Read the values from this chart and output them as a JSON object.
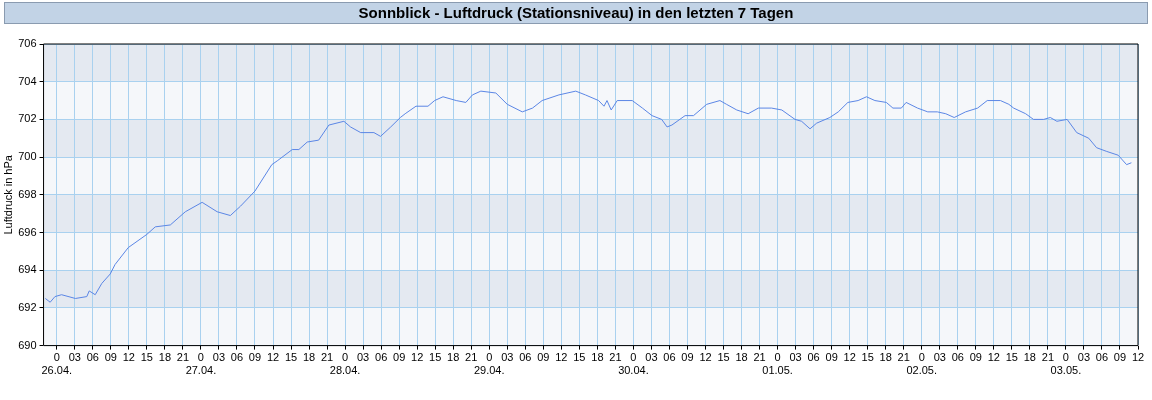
{
  "chart_data": {
    "type": "line",
    "title": "Sonnblick - Luftdruck (Stationsniveau) in den letzten 7 Tagen",
    "ylabel": "Luftdruck in hPa",
    "xlim": [
      "--04-25T21:48",
      "--05-03T12:00"
    ],
    "ylim": [
      690,
      706
    ],
    "yticks": [
      690,
      692,
      694,
      696,
      698,
      700,
      702,
      704,
      706
    ],
    "xticks": [
      {
        "value": "--04-26T00:00",
        "label": "0\n26.04."
      },
      {
        "value": "--04-26T03:00",
        "label": "03"
      },
      {
        "value": "--04-26T06:00",
        "label": "06"
      },
      {
        "value": "--04-26T09:00",
        "label": "09"
      },
      {
        "value": "--04-26T12:00",
        "label": "12"
      },
      {
        "value": "--04-26T15:00",
        "label": "15"
      },
      {
        "value": "--04-26T18:00",
        "label": "18"
      },
      {
        "value": "--04-26T21:00",
        "label": "21"
      },
      {
        "value": "--04-27T00:00",
        "label": "0\n27.04."
      },
      {
        "value": "--04-27T03:00",
        "label": "03"
      },
      {
        "value": "--04-27T06:00",
        "label": "06"
      },
      {
        "value": "--04-27T09:00",
        "label": "09"
      },
      {
        "value": "--04-27T12:00",
        "label": "12"
      },
      {
        "value": "--04-27T15:00",
        "label": "15"
      },
      {
        "value": "--04-27T18:00",
        "label": "18"
      },
      {
        "value": "--04-27T21:00",
        "label": "21"
      },
      {
        "value": "--04-28T00:00",
        "label": "0\n28.04."
      },
      {
        "value": "--04-28T03:00",
        "label": "03"
      },
      {
        "value": "--04-28T06:00",
        "label": "06"
      },
      {
        "value": "--04-28T09:00",
        "label": "09"
      },
      {
        "value": "--04-28T12:00",
        "label": "12"
      },
      {
        "value": "--04-28T15:00",
        "label": "15"
      },
      {
        "value": "--04-28T18:00",
        "label": "18"
      },
      {
        "value": "--04-28T21:00",
        "label": "21"
      },
      {
        "value": "--04-29T00:00",
        "label": "0\n29.04."
      },
      {
        "value": "--04-29T03:00",
        "label": "03"
      },
      {
        "value": "--04-29T06:00",
        "label": "06"
      },
      {
        "value": "--04-29T09:00",
        "label": "09"
      },
      {
        "value": "--04-29T12:00",
        "label": "12"
      },
      {
        "value": "--04-29T15:00",
        "label": "15"
      },
      {
        "value": "--04-29T18:00",
        "label": "18"
      },
      {
        "value": "--04-29T21:00",
        "label": "21"
      },
      {
        "value": "--04-30T00:00",
        "label": "0\n30.04."
      },
      {
        "value": "--04-30T03:00",
        "label": "03"
      },
      {
        "value": "--04-30T06:00",
        "label": "06"
      },
      {
        "value": "--04-30T09:00",
        "label": "09"
      },
      {
        "value": "--04-30T12:00",
        "label": "12"
      },
      {
        "value": "--04-30T15:00",
        "label": "15"
      },
      {
        "value": "--04-30T18:00",
        "label": "18"
      },
      {
        "value": "--04-30T21:00",
        "label": "21"
      },
      {
        "value": "--05-01T00:00",
        "label": "0\n01.05."
      },
      {
        "value": "--05-01T03:00",
        "label": "03"
      },
      {
        "value": "--05-01T06:00",
        "label": "06"
      },
      {
        "value": "--05-01T09:00",
        "label": "09"
      },
      {
        "value": "--05-01T12:00",
        "label": "12"
      },
      {
        "value": "--05-01T15:00",
        "label": "15"
      },
      {
        "value": "--05-01T18:00",
        "label": "18"
      },
      {
        "value": "--05-01T21:00",
        "label": "21"
      },
      {
        "value": "--05-02T00:00",
        "label": "0\n02.05."
      },
      {
        "value": "--05-02T03:00",
        "label": "03"
      },
      {
        "value": "--05-02T06:00",
        "label": "06"
      },
      {
        "value": "--05-02T09:00",
        "label": "09"
      },
      {
        "value": "--05-02T12:00",
        "label": "12"
      },
      {
        "value": "--05-02T15:00",
        "label": "15"
      },
      {
        "value": "--05-02T18:00",
        "label": "18"
      },
      {
        "value": "--05-02T21:00",
        "label": "21"
      },
      {
        "value": "--05-03T00:00",
        "label": "0\n03.05."
      },
      {
        "value": "--05-03T03:00",
        "label": "03"
      },
      {
        "value": "--05-03T06:00",
        "label": "06"
      },
      {
        "value": "--05-03T09:00",
        "label": "09"
      },
      {
        "value": "--05-03T12:00",
        "label": "12"
      }
    ],
    "grid": true,
    "legend": false,
    "marker": "none",
    "line_style": "solid",
    "series": [
      {
        "color": "#5b86e5",
        "x": [
          "--04-25T22:06",
          "--04-25T22:54",
          "--04-25T23:42",
          "--04-26T00:48",
          "--04-26T03:06",
          "--04-26T05:00",
          "--04-26T05:24",
          "--04-26T06:24",
          "--04-26T07:30",
          "--04-26T08:54",
          "--04-26T09:42",
          "--04-26T11:54",
          "--04-26T15:00",
          "--04-26T16:24",
          "--04-26T18:54",
          "--04-26T21:24",
          "--04-27T00:12",
          "--04-27T02:42",
          "--04-27T04:54",
          "--04-27T06:36",
          "--04-27T09:00",
          "--04-27T11:48",
          "--04-27T12:42",
          "--04-27T15:12",
          "--04-27T16:18",
          "--04-27T17:42",
          "--04-27T19:36",
          "--04-27T21:18",
          "--04-27T23:48",
          "--04-28T00:54",
          "--04-28T02:36",
          "--04-28T04:48",
          "--04-28T05:54",
          "--04-28T07:36",
          "--04-28T09:12",
          "--04-28T10:00",
          "--04-28T11:48",
          "--04-28T13:48",
          "--04-28T14:54",
          "--04-28T16:18",
          "--04-28T18:30",
          "--04-28T20:06",
          "--04-28T21:12",
          "--04-28T22:36",
          "--04-29T01:06",
          "--04-29T03:00",
          "--04-29T05:30",
          "--04-29T07:12",
          "--04-29T08:48",
          "--04-29T11:36",
          "--04-29T14:24",
          "--04-29T16:00",
          "--04-29T18:12",
          "--04-29T19:06",
          "--04-29T19:36",
          "--04-29T20:18",
          "--04-29T21:18",
          "--04-29T23:48",
          "--04-30T01:30",
          "--04-30T03:06",
          "--04-30T04:42",
          "--04-30T05:36",
          "--04-30T06:24",
          "--04-30T08:36",
          "--04-30T10:00",
          "--04-30T12:12",
          "--04-30T14:24",
          "--04-30T15:30",
          "--04-30T17:12",
          "--04-30T19:06",
          "--04-30T20:48",
          "--04-30T23:00",
          "--05-01T00:42",
          "--05-01T02:54",
          "--05-01T04:00",
          "--05-01T05:24",
          "--05-01T06:30",
          "--05-01T08:42",
          "--05-01T10:06",
          "--05-01T11:42",
          "--05-01T13:24",
          "--05-01T14:48",
          "--05-01T16:12",
          "--05-01T18:06",
          "--05-01T19:12",
          "--05-01T20:36",
          "--05-01T21:24",
          "--05-01T23:18",
          "--05-02T01:00",
          "--05-02T02:36",
          "--05-02T04:00",
          "--05-02T05:24",
          "--05-02T07:18",
          "--05-02T09:18",
          "--05-02T10:54",
          "--05-02T13:06",
          "--05-02T14:30",
          "--05-02T15:18",
          "--05-02T17:18",
          "--05-02T18:36",
          "--05-02T20:18",
          "--05-02T21:24",
          "--05-02T22:30",
          "--05-03T00:12",
          "--05-03T01:48",
          "--05-03T03:48",
          "--05-03T05:06",
          "--05-03T06:48",
          "--05-03T08:42",
          "--05-03T10:06",
          "--05-03T10:54"
        ],
        "values": [
          692.5,
          692.3,
          692.6,
          692.7,
          692.5,
          692.6,
          692.9,
          692.7,
          693.3,
          693.8,
          694.3,
          695.2,
          695.9,
          696.3,
          696.4,
          697.1,
          697.6,
          697.1,
          696.9,
          697.4,
          698.2,
          699.6,
          699.8,
          700.4,
          700.4,
          700.8,
          700.9,
          701.7,
          701.9,
          701.6,
          701.3,
          701.3,
          701.1,
          701.6,
          702.1,
          702.3,
          702.7,
          702.7,
          703.0,
          703.2,
          703.0,
          702.9,
          703.3,
          703.5,
          703.4,
          702.8,
          702.4,
          702.6,
          703.0,
          703.3,
          703.5,
          703.3,
          703.0,
          702.7,
          703.0,
          702.5,
          703.0,
          703.0,
          702.6,
          702.2,
          702.0,
          701.6,
          701.7,
          702.2,
          702.2,
          702.8,
          703.0,
          702.8,
          702.5,
          702.3,
          702.6,
          702.6,
          702.5,
          702.0,
          701.9,
          701.5,
          701.8,
          702.1,
          702.4,
          702.9,
          703.0,
          703.2,
          703.0,
          702.9,
          702.6,
          702.6,
          702.9,
          702.6,
          702.4,
          702.4,
          702.3,
          702.1,
          702.4,
          702.6,
          703.0,
          703.0,
          702.8,
          702.6,
          702.3,
          702.0,
          702.0,
          702.1,
          701.9,
          702.0,
          701.3,
          701.0,
          700.5,
          700.3,
          700.1,
          699.6,
          699.7
        ]
      }
    ]
  }
}
